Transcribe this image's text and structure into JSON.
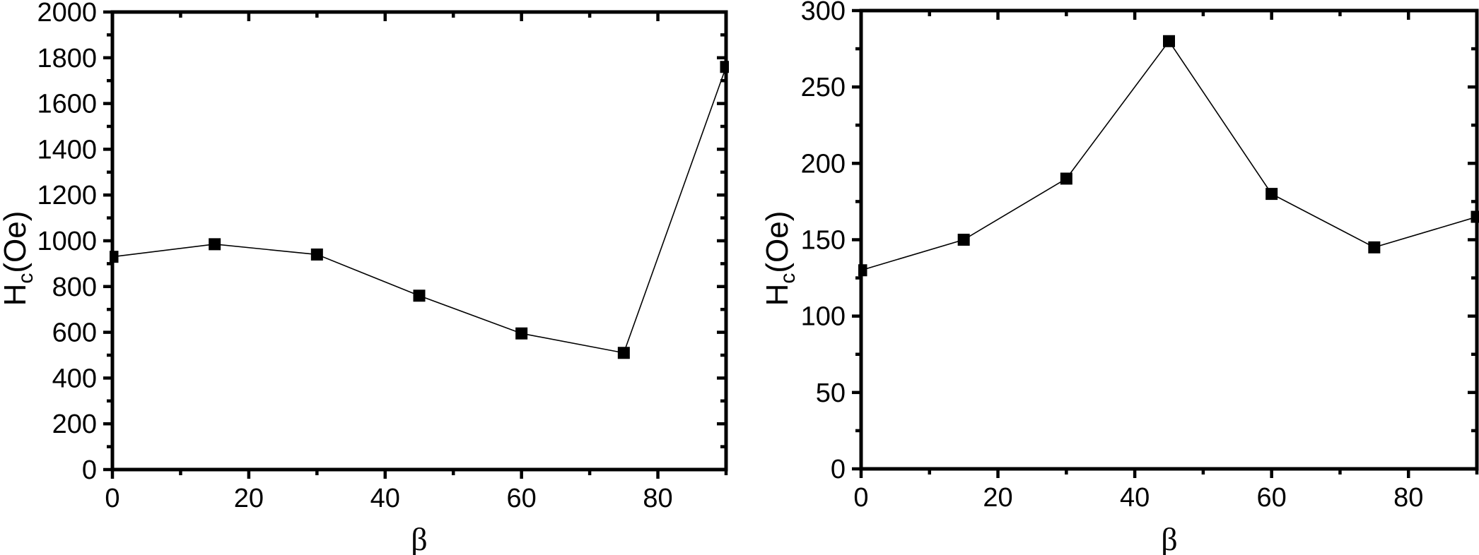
{
  "figure": {
    "background": "#ffffff",
    "foreground": "#000000"
  },
  "chart_data": [
    {
      "type": "line",
      "title": "",
      "xlabel": "β",
      "ylabel": "Hc(Oe)",
      "ylabel_parts": {
        "base": "H",
        "sub": "c",
        "unit": "(Oe)"
      },
      "x": [
        0,
        15,
        30,
        45,
        60,
        75,
        90
      ],
      "y": [
        930,
        985,
        940,
        760,
        595,
        510,
        1760
      ],
      "xlim": [
        0,
        90
      ],
      "ylim": [
        0,
        2000
      ],
      "xticks": [
        0,
        20,
        40,
        60,
        80
      ],
      "yticks": [
        0,
        200,
        400,
        600,
        800,
        1000,
        1200,
        1400,
        1600,
        1800,
        2000
      ],
      "x_minor_step": 10,
      "y_minor_step": 100,
      "marker": "square",
      "marker_size": 17,
      "color": "#000000",
      "grid": false,
      "legend": "none"
    },
    {
      "type": "line",
      "title": "",
      "xlabel": "β",
      "ylabel": "Hc(Oe)",
      "ylabel_parts": {
        "base": "H",
        "sub": "c",
        "unit": "(Oe)"
      },
      "x": [
        0,
        15,
        30,
        45,
        60,
        75,
        90
      ],
      "y": [
        130,
        150,
        190,
        280,
        180,
        145,
        165
      ],
      "xlim": [
        0,
        90
      ],
      "ylim": [
        0,
        300
      ],
      "xticks": [
        0,
        20,
        40,
        60,
        80
      ],
      "yticks": [
        0,
        50,
        100,
        150,
        200,
        250,
        300
      ],
      "x_minor_step": 10,
      "y_minor_step": 25,
      "marker": "square",
      "marker_size": 17,
      "color": "#000000",
      "grid": false,
      "legend": "none"
    }
  ]
}
